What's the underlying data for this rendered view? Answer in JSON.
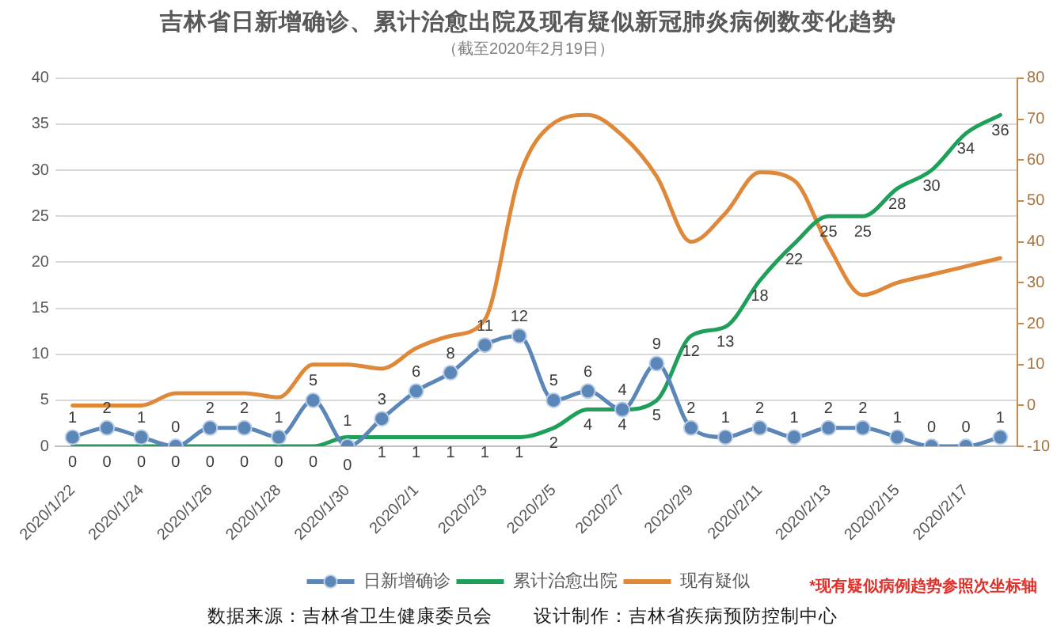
{
  "chart_data": {
    "type": "line",
    "title": "吉林省日新增确诊、累计治愈出院及现有疑似新冠肺炎病例数变化趋势",
    "subtitle": "（截至2020年2月19日）",
    "categories": [
      "2020/1/22",
      null,
      "2020/1/24",
      null,
      "2020/1/26",
      null,
      "2020/1/28",
      null,
      "2020/1/30",
      null,
      "2020/2/1",
      null,
      "2020/2/3",
      null,
      "2020/2/5",
      null,
      "2020/2/7",
      null,
      "2020/2/9",
      null,
      "2020/2/11",
      null,
      "2020/2/13",
      null,
      "2020/2/15",
      null,
      "2020/2/17",
      null
    ],
    "series": [
      {
        "name": "日新增确诊",
        "color": "#5b86b8",
        "marker": "circle",
        "data_labels": true,
        "values": [
          1,
          2,
          1,
          0,
          2,
          2,
          1,
          5,
          0,
          3,
          6,
          8,
          11,
          12,
          5,
          6,
          4,
          9,
          2,
          1,
          2,
          1,
          2,
          2,
          1,
          0,
          0,
          1
        ]
      },
      {
        "name": "累计治愈出院",
        "color": "#1fa05a",
        "marker": "none",
        "data_labels": true,
        "values": [
          0,
          0,
          0,
          0,
          0,
          0,
          0,
          0,
          1,
          1,
          1,
          1,
          1,
          1,
          2,
          4,
          4,
          5,
          12,
          13,
          18,
          22,
          25,
          25,
          28,
          30,
          34,
          36
        ]
      },
      {
        "name": "现有疑似",
        "color": "#e0883a",
        "marker": "none",
        "axis": "y2",
        "values": [
          0,
          0,
          0,
          3,
          3,
          3,
          2,
          10,
          10,
          9,
          14,
          17,
          21,
          56,
          69,
          71,
          66,
          56,
          40,
          47,
          57,
          55,
          39,
          27,
          30,
          32,
          34,
          36
        ]
      }
    ],
    "ylim": [
      0,
      40
    ],
    "yticks": [
      0,
      5,
      10,
      15,
      20,
      25,
      30,
      35,
      40
    ],
    "y2lim": [
      -10,
      80
    ],
    "y2ticks": [
      -10,
      0,
      10,
      20,
      30,
      40,
      50,
      60,
      70,
      80
    ],
    "grid": "y",
    "legend": "bottom",
    "line_style": "solid",
    "annotations": [
      "*现有疑似病例趋势参照次坐标轴",
      "数据来源：吉林省卫生健康委员会",
      "设计制作：吉林省疾病预防控制中心"
    ]
  }
}
